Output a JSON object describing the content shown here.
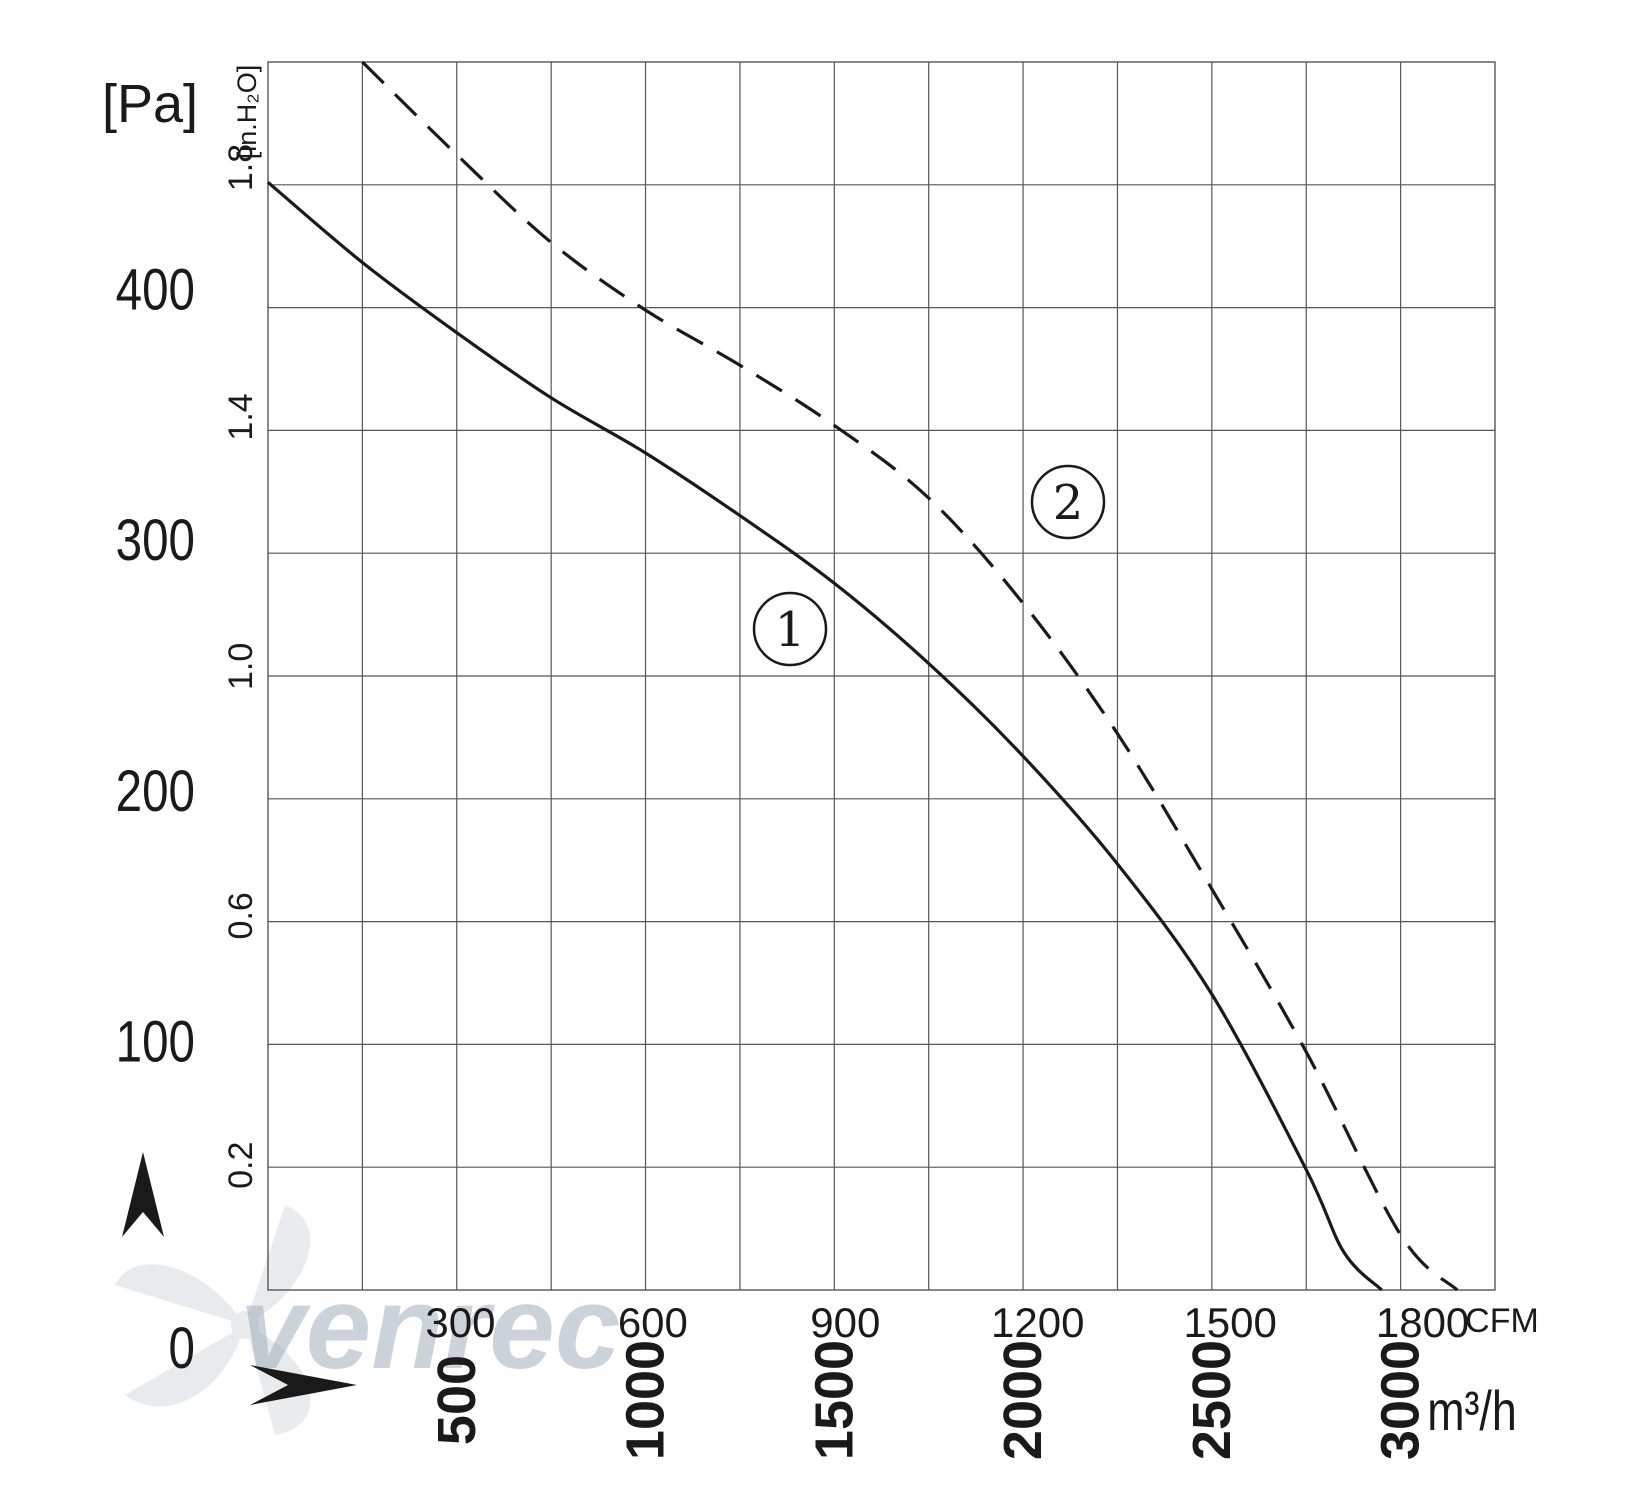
{
  "watermark": {
    "text": "venrec"
  },
  "chart_data": {
    "type": "line",
    "y_left": {
      "unit": "[Pa]",
      "ticks": [
        "0",
        "100",
        "200",
        "300",
        "400"
      ],
      "range": [
        0,
        490
      ]
    },
    "y_right": {
      "unit": "[in.H₂O]",
      "ticks": [
        "0.2",
        "0.6",
        "1.0",
        "1.4",
        "1.8"
      ]
    },
    "x_top": {
      "unit": "CFM",
      "ticks": [
        "300",
        "600",
        "900",
        "1200",
        "1500",
        "1800"
      ]
    },
    "x_bottom": {
      "unit": "m³/h",
      "ticks": [
        "500",
        "1000",
        "1500",
        "2000",
        "2500",
        "3000"
      ],
      "range": [
        0,
        3250
      ]
    },
    "grid": true,
    "series": [
      {
        "name": "①",
        "style": "solid",
        "x": [
          0,
          250,
          500,
          750,
          1000,
          1250,
          1500,
          1750,
          2000,
          2250,
          2500,
          2750,
          2850,
          2950
        ],
        "y": [
          442,
          410,
          382,
          356,
          334,
          309,
          282,
          250,
          213,
          170,
          118,
          48,
          15,
          0
        ]
      },
      {
        "name": "②",
        "style": "dashed",
        "x": [
          250,
          500,
          750,
          1000,
          1250,
          1500,
          1750,
          2000,
          2250,
          2500,
          2750,
          3000,
          3150
        ],
        "y": [
          490,
          453,
          418,
          391,
          369,
          345,
          316,
          274,
          222,
          160,
          95,
          22,
          0
        ]
      }
    ]
  }
}
